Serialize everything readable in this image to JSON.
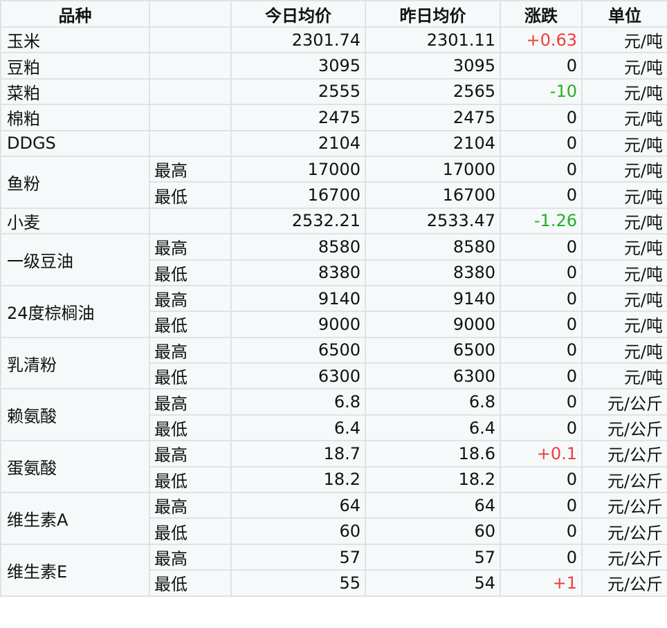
{
  "headers": [
    "品种",
    "",
    "今日均价",
    "昨日均价",
    "涨跌",
    "单位"
  ],
  "colors": {
    "up": "#f03c3c",
    "down": "#22b022"
  },
  "groups": [
    {
      "name": "玉米",
      "rows": [
        {
          "sub": "",
          "today": "2301.74",
          "yesterday": "2301.11",
          "change": "+0.63",
          "unit": "元/吨"
        }
      ]
    },
    {
      "name": "豆粕",
      "rows": [
        {
          "sub": "",
          "today": "3095",
          "yesterday": "3095",
          "change": "0",
          "unit": "元/吨"
        }
      ]
    },
    {
      "name": "菜粕",
      "rows": [
        {
          "sub": "",
          "today": "2555",
          "yesterday": "2565",
          "change": "-10",
          "unit": "元/吨"
        }
      ]
    },
    {
      "name": "棉粕",
      "rows": [
        {
          "sub": "",
          "today": "2475",
          "yesterday": "2475",
          "change": "0",
          "unit": "元/吨"
        }
      ]
    },
    {
      "name": "DDGS",
      "rows": [
        {
          "sub": "",
          "today": "2104",
          "yesterday": "2104",
          "change": "0",
          "unit": "元/吨"
        }
      ]
    },
    {
      "name": "鱼粉",
      "rows": [
        {
          "sub": "最高",
          "today": "17000",
          "yesterday": "17000",
          "change": "0",
          "unit": "元/吨"
        },
        {
          "sub": "最低",
          "today": "16700",
          "yesterday": "16700",
          "change": "0",
          "unit": "元/吨"
        }
      ]
    },
    {
      "name": "小麦",
      "rows": [
        {
          "sub": "",
          "today": "2532.21",
          "yesterday": "2533.47",
          "change": "-1.26",
          "unit": "元/吨"
        }
      ]
    },
    {
      "name": "一级豆油",
      "rows": [
        {
          "sub": "最高",
          "today": "8580",
          "yesterday": "8580",
          "change": "0",
          "unit": "元/吨"
        },
        {
          "sub": "最低",
          "today": "8380",
          "yesterday": "8380",
          "change": "0",
          "unit": "元/吨"
        }
      ]
    },
    {
      "name": "24度棕榈油",
      "rows": [
        {
          "sub": "最高",
          "today": "9140",
          "yesterday": "9140",
          "change": "0",
          "unit": "元/吨"
        },
        {
          "sub": "最低",
          "today": "9000",
          "yesterday": "9000",
          "change": "0",
          "unit": "元/吨"
        }
      ]
    },
    {
      "name": "乳清粉",
      "rows": [
        {
          "sub": "最高",
          "today": "6500",
          "yesterday": "6500",
          "change": "0",
          "unit": "元/吨"
        },
        {
          "sub": "最低",
          "today": "6300",
          "yesterday": "6300",
          "change": "0",
          "unit": "元/吨"
        }
      ]
    },
    {
      "name": "赖氨酸",
      "rows": [
        {
          "sub": "最高",
          "today": "6.8",
          "yesterday": "6.8",
          "change": "0",
          "unit": "元/公斤"
        },
        {
          "sub": "最低",
          "today": "6.4",
          "yesterday": "6.4",
          "change": "0",
          "unit": "元/公斤"
        }
      ]
    },
    {
      "name": "蛋氨酸",
      "rows": [
        {
          "sub": "最高",
          "today": "18.7",
          "yesterday": "18.6",
          "change": "+0.1",
          "unit": "元/公斤"
        },
        {
          "sub": "最低",
          "today": "18.2",
          "yesterday": "18.2",
          "change": "0",
          "unit": "元/公斤"
        }
      ]
    },
    {
      "name": "维生素A",
      "rows": [
        {
          "sub": "最高",
          "today": "64",
          "yesterday": "64",
          "change": "0",
          "unit": "元/公斤"
        },
        {
          "sub": "最低",
          "today": "60",
          "yesterday": "60",
          "change": "0",
          "unit": "元/公斤"
        }
      ]
    },
    {
      "name": "维生素E",
      "rows": [
        {
          "sub": "最高",
          "today": "57",
          "yesterday": "57",
          "change": "0",
          "unit": "元/公斤"
        },
        {
          "sub": "最低",
          "today": "55",
          "yesterday": "54",
          "change": "+1",
          "unit": "元/公斤"
        }
      ]
    }
  ]
}
